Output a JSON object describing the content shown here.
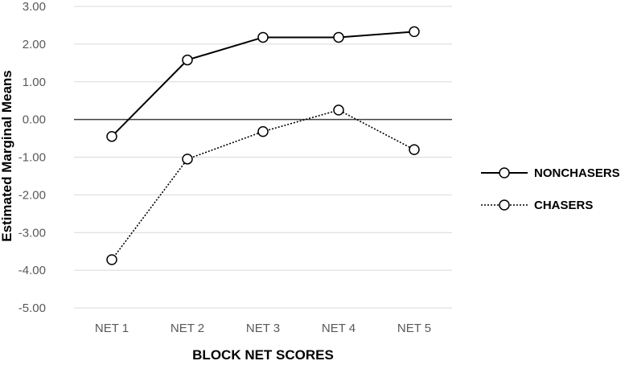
{
  "chart_data": {
    "type": "line",
    "title": "",
    "xlabel": "BLOCK NET SCORES",
    "ylabel": "Estimated Marginal Means",
    "categories": [
      "NET 1",
      "NET 2",
      "NET 3",
      "NET 4",
      "NET 5"
    ],
    "ylim": [
      -5,
      3
    ],
    "yticks": [
      "3.00",
      "2.00",
      "1.00",
      "0.00",
      "-1.00",
      "-2.00",
      "-3.00",
      "-4.00",
      "-5.00"
    ],
    "grid": true,
    "legend_position": "right",
    "series": [
      {
        "name": "NONCHASERS",
        "style": "solid",
        "values": [
          -0.45,
          1.58,
          2.18,
          2.18,
          2.33
        ]
      },
      {
        "name": "CHASERS",
        "style": "dotted",
        "values": [
          -3.72,
          -1.05,
          -0.32,
          0.25,
          -0.8
        ]
      }
    ],
    "colors": {
      "line": "#000000",
      "grid": "#d9d9d9",
      "zero_line": "#404040",
      "marker_fill": "#ffffff"
    }
  }
}
